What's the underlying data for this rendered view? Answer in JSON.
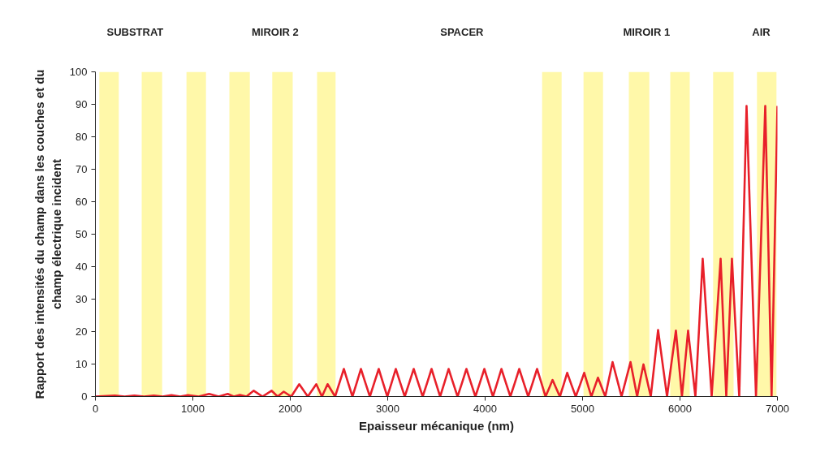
{
  "chart_data": {
    "type": "line",
    "xlabel": "Epaisseur mécanique (nm)",
    "ylabel": "Rapport des intensités du champ dans les couches et du champ électrique incident",
    "x": [
      0,
      200,
      300,
      400,
      500,
      600,
      690,
      780,
      870,
      950,
      1060,
      1167,
      1265,
      1358,
      1420,
      1483,
      1550,
      1625,
      1715,
      1808,
      1870,
      1933,
      2010,
      2092,
      2180,
      2267,
      2325,
      2383,
      2460,
      2505,
      2550,
      2594,
      2638,
      2682,
      2725,
      2771,
      2817,
      2862,
      2908,
      2952,
      2996,
      3040,
      3083,
      3129,
      3175,
      3221,
      3267,
      3313,
      3359,
      3405,
      3450,
      3494,
      3538,
      3582,
      3625,
      3671,
      3717,
      3763,
      3808,
      3854,
      3900,
      3946,
      3992,
      4036,
      4080,
      4124,
      4167,
      4213,
      4259,
      4305,
      4350,
      4396,
      4442,
      4488,
      4533,
      4577,
      4620,
      4656,
      4692,
      4730,
      4767,
      4805,
      4842,
      4886,
      4930,
      4974,
      5017,
      5054,
      5090,
      5124,
      5158,
      5196,
      5233,
      5270,
      5308,
      5354,
      5400,
      5446,
      5492,
      5526,
      5560,
      5592,
      5625,
      5662,
      5700,
      5738,
      5775,
      5821,
      5867,
      5912,
      5958,
      5989,
      6020,
      6052,
      6083,
      6120,
      6158,
      6196,
      6233,
      6279,
      6325,
      6371,
      6417,
      6446,
      6475,
      6504,
      6533,
      6570,
      6608,
      6646,
      6683,
      6731,
      6780,
      6828,
      6875,
      6908,
      6940,
      6970,
      7000
    ],
    "series": [
      {
        "color": "#e8202a",
        "values": [
          0,
          0.3,
          0,
          0.3,
          0,
          0.3,
          0,
          0.4,
          0,
          0.4,
          0,
          0.8,
          0,
          0.8,
          0,
          0.5,
          0,
          1.8,
          0,
          1.8,
          0,
          1.5,
          0,
          3.8,
          0,
          3.8,
          0,
          3.8,
          0,
          4.2,
          8.5,
          4.2,
          0,
          4.2,
          8.5,
          4.2,
          0,
          4.2,
          8.5,
          4.2,
          0,
          4.2,
          8.5,
          4.2,
          0,
          4.2,
          8.5,
          4.2,
          0,
          4.2,
          8.5,
          4.2,
          0,
          4.2,
          8.5,
          4.2,
          0,
          4.2,
          8.5,
          4.2,
          0,
          4.2,
          8.5,
          4.2,
          0,
          4.2,
          8.5,
          4.2,
          0,
          4.2,
          8.5,
          4.2,
          0,
          4.2,
          8.5,
          4.2,
          0,
          2.5,
          5.1,
          2.5,
          0,
          3.6,
          7.3,
          3.6,
          0,
          3.6,
          7.3,
          3.6,
          0,
          2.9,
          5.8,
          2.9,
          0,
          5.3,
          10.6,
          5.3,
          0,
          5.3,
          10.6,
          5.3,
          0,
          5,
          9.9,
          5,
          0,
          10.2,
          20.5,
          10.2,
          0,
          10.2,
          20.3,
          10.2,
          0,
          10.2,
          20.3,
          10.2,
          0,
          21.2,
          42.4,
          21.2,
          0,
          21.2,
          42.4,
          21.2,
          0,
          21.2,
          42.4,
          21.2,
          0,
          44.8,
          89.5,
          44.8,
          0,
          44.8,
          89.5,
          44.8,
          0,
          44.8,
          89.5
        ]
      }
    ],
    "xlim": [
      0,
      7000
    ],
    "ylim": [
      0,
      100
    ],
    "xticks": [
      0,
      1000,
      2000,
      3000,
      4000,
      5000,
      6000,
      7000
    ],
    "yticks": [
      0,
      10,
      20,
      30,
      40,
      50,
      60,
      70,
      80,
      90,
      100
    ],
    "grid": false,
    "line_style": "solid",
    "marker": "none",
    "bands": [
      {
        "axis": "x",
        "from": 40,
        "to": 240,
        "color": "#fff7a0"
      },
      {
        "axis": "x",
        "from": 475,
        "to": 685,
        "color": "#fff7a0"
      },
      {
        "axis": "x",
        "from": 935,
        "to": 1135,
        "color": "#fff7a0"
      },
      {
        "axis": "x",
        "from": 1375,
        "to": 1585,
        "color": "#fff7a0"
      },
      {
        "axis": "x",
        "from": 1815,
        "to": 2025,
        "color": "#fff7a0"
      },
      {
        "axis": "x",
        "from": 2275,
        "to": 2465,
        "color": "#fff7a0"
      },
      {
        "axis": "x",
        "from": 4585,
        "to": 4785,
        "color": "#fff7a0"
      },
      {
        "axis": "x",
        "from": 5010,
        "to": 5210,
        "color": "#fff7a0"
      },
      {
        "axis": "x",
        "from": 5475,
        "to": 5685,
        "color": "#fff7a0"
      },
      {
        "axis": "x",
        "from": 5900,
        "to": 6100,
        "color": "#fff7a0"
      },
      {
        "axis": "x",
        "from": 6340,
        "to": 6550,
        "color": "#fff7a0"
      },
      {
        "axis": "x",
        "from": 6790,
        "to": 6990,
        "color": "#fff7a0"
      }
    ],
    "annotations": [
      "SUBSTRAT",
      "MIROIR 2",
      "SPACER",
      "MIROIR 1",
      "AIR"
    ]
  }
}
